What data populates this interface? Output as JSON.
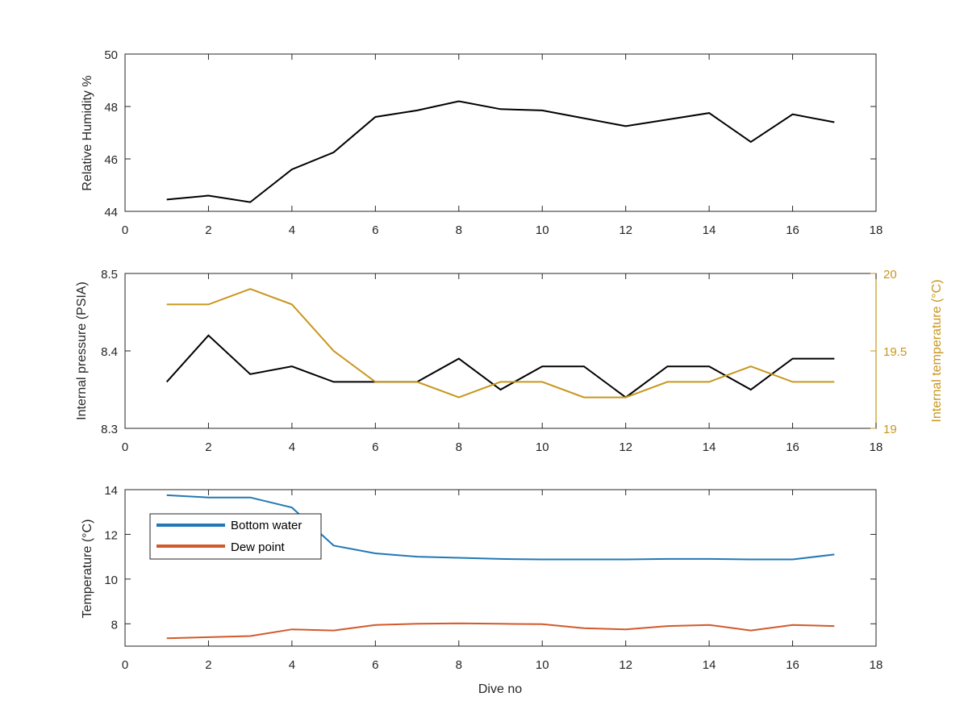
{
  "colors": {
    "black_series": "#000000",
    "gold_axis": "#C9951D",
    "gold_series": "#C8961E",
    "bottom_water": "#2278B5",
    "dew_point": "#D2592A",
    "axis": "#262626"
  },
  "chart_data": [
    {
      "type": "line",
      "title": "",
      "xlabel": "",
      "ylabel": "Relative Humidity %",
      "xlim": [
        0,
        18
      ],
      "ylim": [
        44,
        50
      ],
      "xticks": [
        "0",
        "2",
        "4",
        "6",
        "8",
        "10",
        "12",
        "14",
        "16",
        "18"
      ],
      "yticks": [
        "44",
        "46",
        "48",
        "50"
      ],
      "x": [
        1,
        2,
        3,
        4,
        5,
        6,
        7,
        8,
        9,
        10,
        11,
        12,
        13,
        14,
        15,
        16,
        17
      ],
      "series": [
        {
          "values": [
            44.45,
            44.6,
            44.35,
            45.6,
            46.25,
            47.6,
            47.85,
            48.2,
            47.9,
            47.85,
            47.55,
            47.25,
            47.5,
            47.75,
            46.65,
            47.7,
            47.4
          ]
        }
      ],
      "grid": false
    },
    {
      "type": "line",
      "title": "",
      "xlabel": "",
      "ylabel": "Internal pressure (PSIA)",
      "ylabel_right": "Internal temperature (°C)",
      "xlim": [
        0,
        18
      ],
      "ylim": [
        8.3,
        8.5
      ],
      "ylim_right": [
        19,
        20
      ],
      "xticks": [
        "0",
        "2",
        "4",
        "6",
        "8",
        "10",
        "12",
        "14",
        "16",
        "18"
      ],
      "yticks": [
        "8.3",
        "8.4",
        "8.5"
      ],
      "yticks_right": [
        "19",
        "19.5",
        "20"
      ],
      "x": [
        1,
        2,
        3,
        4,
        5,
        6,
        7,
        8,
        9,
        10,
        11,
        12,
        13,
        14,
        15,
        16,
        17
      ],
      "series": [
        {
          "axis": "left",
          "values": [
            8.36,
            8.42,
            8.37,
            8.38,
            8.36,
            8.36,
            8.36,
            8.39,
            8.35,
            8.38,
            8.38,
            8.34,
            8.38,
            8.38,
            8.35,
            8.39,
            8.39
          ]
        },
        {
          "axis": "right",
          "values": [
            19.8,
            19.8,
            19.9,
            19.8,
            19.5,
            19.3,
            19.3,
            19.2,
            19.3,
            19.3,
            19.2,
            19.2,
            19.3,
            19.3,
            19.4,
            19.3,
            19.3
          ]
        }
      ],
      "grid": false
    },
    {
      "type": "line",
      "title": "",
      "xlabel": "Dive no",
      "ylabel": "Temperature (°C)",
      "xlim": [
        0,
        18
      ],
      "ylim": [
        7,
        14
      ],
      "xticks": [
        "0",
        "2",
        "4",
        "6",
        "8",
        "10",
        "12",
        "14",
        "16",
        "18"
      ],
      "yticks": [
        "8",
        "10",
        "12",
        "14"
      ],
      "x": [
        1,
        2,
        3,
        4,
        5,
        6,
        7,
        8,
        9,
        10,
        11,
        12,
        13,
        14,
        15,
        16,
        17
      ],
      "series": [
        {
          "name": "Bottom water",
          "values": [
            13.75,
            13.65,
            13.65,
            13.2,
            11.5,
            11.15,
            11.0,
            10.95,
            10.9,
            10.88,
            10.88,
            10.88,
            10.9,
            10.9,
            10.88,
            10.88,
            11.1
          ]
        },
        {
          "name": "Dew point",
          "values": [
            7.35,
            7.4,
            7.45,
            7.75,
            7.7,
            7.95,
            8.0,
            8.02,
            8.0,
            7.98,
            7.8,
            7.75,
            7.9,
            7.95,
            7.7,
            7.95,
            7.9
          ]
        }
      ],
      "legend": "top-left",
      "grid": false
    }
  ]
}
